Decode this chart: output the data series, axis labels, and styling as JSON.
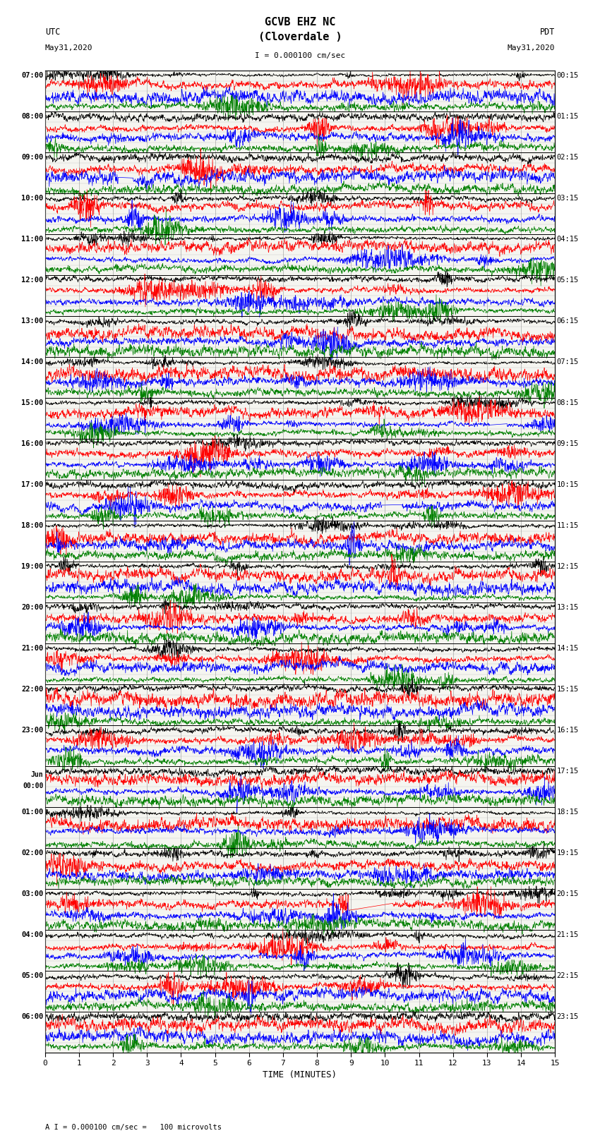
{
  "title_line1": "GCVB EHZ NC",
  "title_line2": "(Cloverdale )",
  "scale_text": "I = 0.000100 cm/sec",
  "footer_text": "A I = 0.000100 cm/sec =   100 microvolts",
  "xlabel": "TIME (MINUTES)",
  "utc_times": [
    "07:00",
    "08:00",
    "09:00",
    "10:00",
    "11:00",
    "12:00",
    "13:00",
    "14:00",
    "15:00",
    "16:00",
    "17:00",
    "18:00",
    "19:00",
    "20:00",
    "21:00",
    "22:00",
    "23:00",
    "Jun\n00:00",
    "01:00",
    "02:00",
    "03:00",
    "04:00",
    "05:00",
    "06:00"
  ],
  "pdt_times": [
    "00:15",
    "01:15",
    "02:15",
    "03:15",
    "04:15",
    "05:15",
    "06:15",
    "07:15",
    "08:15",
    "09:15",
    "10:15",
    "11:15",
    "12:15",
    "13:15",
    "14:15",
    "15:15",
    "16:15",
    "17:15",
    "18:15",
    "19:15",
    "20:15",
    "21:15",
    "22:15",
    "23:15"
  ],
  "n_rows": 24,
  "traces_per_row": 4,
  "colors": [
    "black",
    "red",
    "blue",
    "green"
  ],
  "bg_color": "#f5f5f0",
  "grid_color": "#888888",
  "separator_color": "black",
  "line_width": 0.5,
  "xmin": 0,
  "xmax": 15,
  "xticks": [
    0,
    1,
    2,
    3,
    4,
    5,
    6,
    7,
    8,
    9,
    10,
    11,
    12,
    13,
    14,
    15
  ],
  "fig_width": 8.5,
  "fig_height": 16.13,
  "dpi": 100
}
